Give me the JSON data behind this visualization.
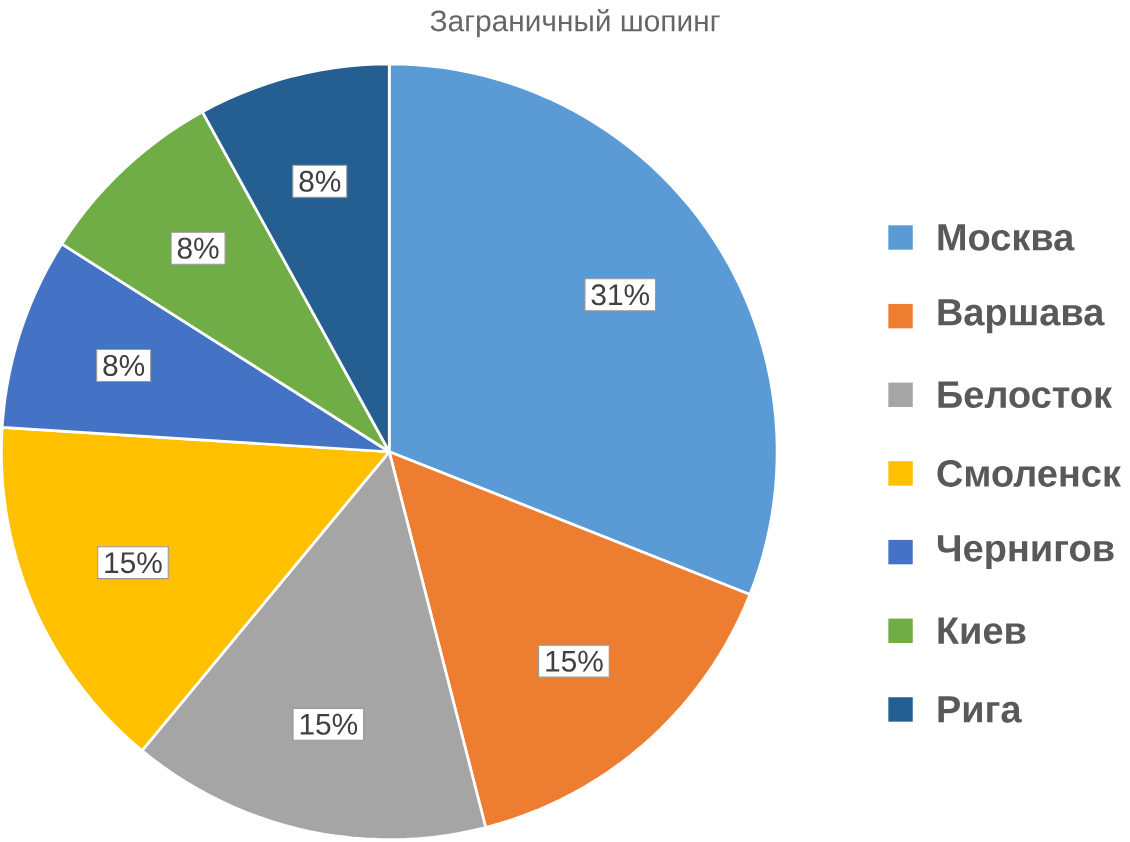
{
  "chart_data": {
    "type": "pie",
    "title": "Заграничный шопинг",
    "categories": [
      "Москва",
      "Варшава",
      "Белосток",
      "Смоленск",
      "Чернигов",
      "Киев",
      "Рига"
    ],
    "values": [
      31,
      15,
      15,
      15,
      8,
      8,
      8
    ],
    "value_labels": [
      "31%",
      "15%",
      "15%",
      "15%",
      "8%",
      "8%",
      "8%"
    ],
    "colors": [
      "#5b9bd5",
      "#ed7d31",
      "#a5a5a5",
      "#ffc000",
      "#4472c4",
      "#70ad47",
      "#255e91"
    ],
    "legend": "right"
  }
}
